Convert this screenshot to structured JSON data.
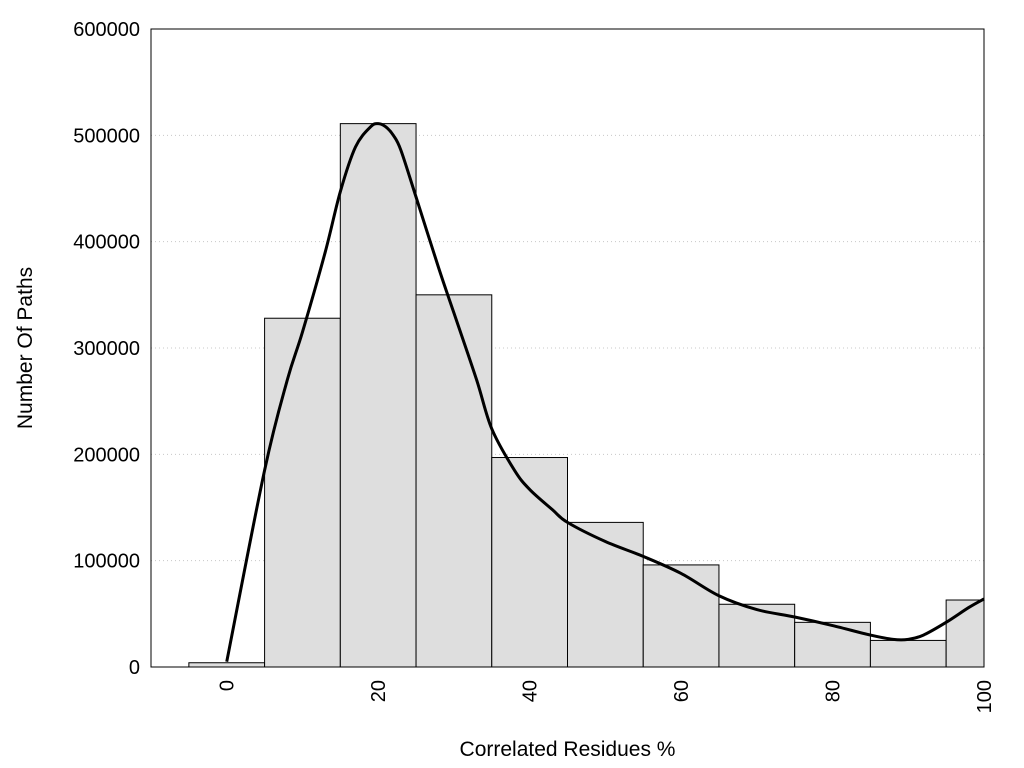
{
  "chart_data": {
    "type": "bar",
    "xlabel": "Correlated Residues %",
    "ylabel": "Number Of Paths",
    "xlim": [
      -10,
      100
    ],
    "ylim": [
      0,
      600000
    ],
    "x_ticks": [
      0,
      20,
      40,
      60,
      80,
      100
    ],
    "y_ticks": [
      0,
      100000,
      200000,
      300000,
      400000,
      500000,
      600000
    ],
    "grid": "horizontal dotted",
    "bar_color": "#dedede",
    "bins": [
      {
        "x_start": -5,
        "x_end": 5,
        "value": 4000
      },
      {
        "x_start": 5,
        "x_end": 15,
        "value": 328000
      },
      {
        "x_start": 15,
        "x_end": 25,
        "value": 511000
      },
      {
        "x_start": 25,
        "x_end": 35,
        "value": 350000
      },
      {
        "x_start": 35,
        "x_end": 45,
        "value": 197000
      },
      {
        "x_start": 45,
        "x_end": 55,
        "value": 136000
      },
      {
        "x_start": 55,
        "x_end": 65,
        "value": 96000
      },
      {
        "x_start": 65,
        "x_end": 75,
        "value": 59000
      },
      {
        "x_start": 75,
        "x_end": 85,
        "value": 42000
      },
      {
        "x_start": 85,
        "x_end": 95,
        "value": 25000
      },
      {
        "x_start": 95,
        "x_end": 100,
        "value": 63000
      }
    ],
    "curve": {
      "type": "line",
      "x": [
        0,
        5,
        8,
        10,
        13,
        15,
        17,
        19,
        20,
        21,
        22,
        23,
        25,
        28,
        30,
        33,
        35,
        38,
        40,
        43,
        45,
        50,
        55,
        60,
        65,
        70,
        75,
        80,
        85,
        88,
        90,
        92,
        95,
        98,
        100
      ],
      "y": [
        5000,
        185000,
        270000,
        315000,
        390000,
        447000,
        489000,
        508000,
        511000,
        508000,
        500000,
        486000,
        442000,
        375000,
        333000,
        270000,
        224000,
        185000,
        167000,
        148000,
        136000,
        118000,
        104000,
        88000,
        67000,
        54000,
        47000,
        39000,
        30000,
        26000,
        26000,
        30000,
        42000,
        56000,
        64000
      ]
    }
  }
}
